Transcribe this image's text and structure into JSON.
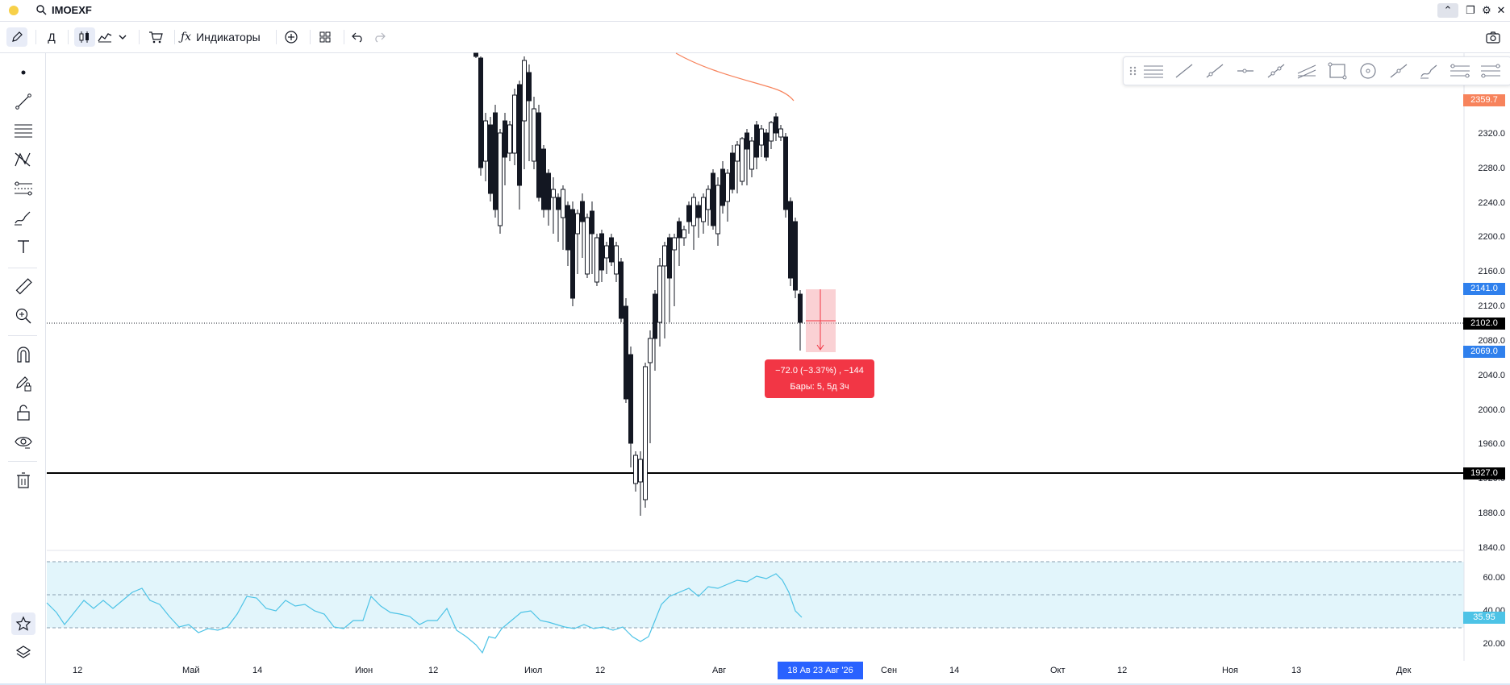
{
  "window": {
    "symbol": "IMOEXF",
    "buttons": [
      "collapse",
      "restore",
      "settings",
      "close"
    ]
  },
  "toolbar": {
    "interval": "Д",
    "indicators_label": "Индикаторы"
  },
  "left_tools": [
    "cursor-dot",
    "trend-line",
    "parallel-lines",
    "pattern",
    "fib",
    "brush",
    "text",
    "ruler",
    "zoom",
    "magnet",
    "lock-drawing",
    "lock",
    "eye",
    "trash",
    "star",
    "layers"
  ],
  "price_axis": {
    "ticks": [
      "2320.0",
      "2280.0",
      "2240.0",
      "2200.0",
      "2160.0",
      "2120.0",
      "2080.0",
      "2040.0",
      "2000.0",
      "1960.0",
      "1920.0",
      "1880.0",
      "1840.0"
    ],
    "tags": {
      "ma": "2359.7",
      "measure_top": "2141.0",
      "current": "2102.0",
      "measure_bottom": "2069.0",
      "hline": "1927.0"
    },
    "colors": {
      "ma": "#f7835c",
      "measure": "#2f80ed",
      "black": "#000000"
    }
  },
  "rsi_axis": {
    "ticks": [
      "60.00",
      "40.00",
      "20.00"
    ],
    "tag": "35.95",
    "tag_color": "#4dc3e6"
  },
  "time_axis": {
    "labels": [
      "12",
      "Май",
      "14",
      "Июн",
      "12",
      "Июл",
      "12",
      "Авг",
      "Сен",
      "14",
      "Окт",
      "12",
      "Ноя",
      "13",
      "Дек"
    ],
    "highlight": "18 Ав    23 Авг '26"
  },
  "measure": {
    "line1": "−72.0 (−3.37%) , −144",
    "line2": "Бары: 5, 5д 3ч",
    "color": "#f23645"
  }
}
